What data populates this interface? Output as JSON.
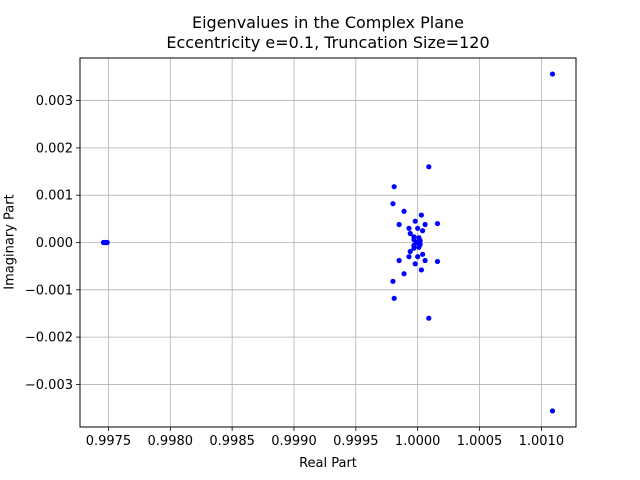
{
  "chart_data": {
    "type": "scatter",
    "title": "Eigenvalues in the Complex Plane",
    "subtitle": "Eccentricity e=0.1, Truncation Size=120",
    "xlabel": "Real Part",
    "ylabel": "Imaginary Part",
    "xlim": [
      0.99727,
      1.00128
    ],
    "ylim": [
      -0.0039,
      0.0039
    ],
    "xticks": [
      {
        "value": 0.9975,
        "label": "0.9975"
      },
      {
        "value": 0.998,
        "label": "0.9980"
      },
      {
        "value": 0.9985,
        "label": "0.9985"
      },
      {
        "value": 0.999,
        "label": "0.9990"
      },
      {
        "value": 0.9995,
        "label": "0.9995"
      },
      {
        "value": 1.0,
        "label": "1.0000"
      },
      {
        "value": 1.0005,
        "label": "1.0005"
      },
      {
        "value": 1.001,
        "label": "1.0010"
      }
    ],
    "yticks": [
      {
        "value": -0.003,
        "label": "−0.003"
      },
      {
        "value": -0.002,
        "label": "−0.002"
      },
      {
        "value": -0.001,
        "label": "−0.001"
      },
      {
        "value": 0.0,
        "label": "0.000"
      },
      {
        "value": 0.001,
        "label": "0.001"
      },
      {
        "value": 0.002,
        "label": "0.002"
      },
      {
        "value": 0.003,
        "label": "0.003"
      }
    ],
    "grid": true,
    "marker_color": "#0000ff",
    "points": [
      {
        "x": 1.00109,
        "y": 0.00356
      },
      {
        "x": 1.00109,
        "y": -0.00356
      },
      {
        "x": 1.00009,
        "y": 0.0016
      },
      {
        "x": 1.00009,
        "y": -0.0016
      },
      {
        "x": 0.99981,
        "y": 0.00118
      },
      {
        "x": 0.99981,
        "y": -0.00118
      },
      {
        "x": 0.9998,
        "y": 0.00082
      },
      {
        "x": 0.9998,
        "y": -0.00082
      },
      {
        "x": 0.99989,
        "y": 0.00066
      },
      {
        "x": 0.99989,
        "y": -0.00066
      },
      {
        "x": 1.00003,
        "y": 0.00058
      },
      {
        "x": 1.00003,
        "y": -0.00058
      },
      {
        "x": 0.99998,
        "y": 0.00045
      },
      {
        "x": 0.99998,
        "y": -0.00045
      },
      {
        "x": 1.00016,
        "y": 0.0004
      },
      {
        "x": 1.00016,
        "y": -0.0004
      },
      {
        "x": 0.99985,
        "y": 0.00038
      },
      {
        "x": 0.99985,
        "y": -0.00038
      },
      {
        "x": 1.00006,
        "y": 0.00038
      },
      {
        "x": 1.00006,
        "y": -0.00038
      },
      {
        "x": 0.99993,
        "y": 0.0003
      },
      {
        "x": 0.99993,
        "y": -0.0003
      },
      {
        "x": 1.0,
        "y": 0.0003
      },
      {
        "x": 1.0,
        "y": -0.0003
      },
      {
        "x": 1.00004,
        "y": 0.00025
      },
      {
        "x": 1.00004,
        "y": -0.00025
      },
      {
        "x": 0.99994,
        "y": 0.00019
      },
      {
        "x": 0.99994,
        "y": -0.00019
      },
      {
        "x": 0.99997,
        "y": 0.00012
      },
      {
        "x": 0.99997,
        "y": -0.00012
      },
      {
        "x": 1.00001,
        "y": 0.0001
      },
      {
        "x": 1.00001,
        "y": -0.0001
      },
      {
        "x": 0.99997,
        "y": 6e-05
      },
      {
        "x": 0.99997,
        "y": -6e-05
      },
      {
        "x": 1.00002,
        "y": 4e-05
      },
      {
        "x": 1.00002,
        "y": -4e-05
      },
      {
        "x": 0.99999,
        "y": 0.0
      },
      {
        "x": 1.00001,
        "y": 0.0
      },
      {
        "x": 0.99746,
        "y": 0.0
      },
      {
        "x": 0.99747,
        "y": 0.0
      },
      {
        "x": 0.99748,
        "y": 0.0
      },
      {
        "x": 0.99749,
        "y": 0.0
      }
    ]
  }
}
